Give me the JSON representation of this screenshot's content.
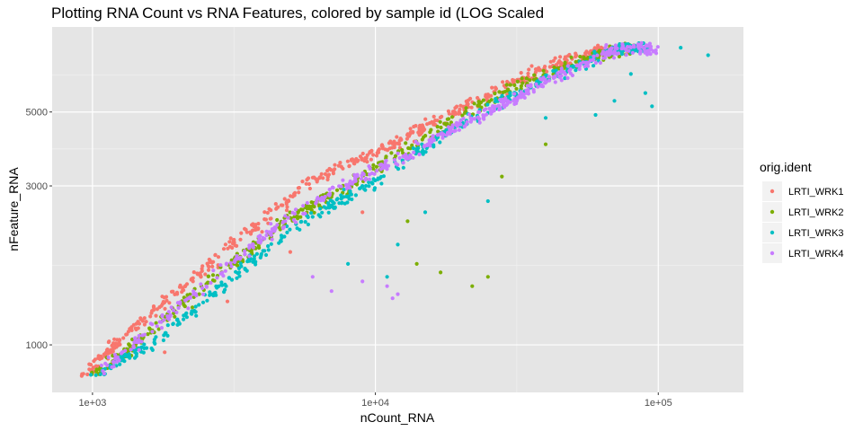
{
  "chart_data": {
    "type": "scatter",
    "title": "Plotting RNA Count vs RNA Features, colored by sample id (LOG Scaled",
    "xlabel": "nCount_RNA",
    "ylabel": "nFeature_RNA",
    "x_scale": "log10",
    "y_scale": "log10",
    "xlim": [
      720,
      200000
    ],
    "ylim": [
      720,
      9000
    ],
    "x_ticks": [
      {
        "value": 1000,
        "label": "1e+03"
      },
      {
        "value": 10000,
        "label": "1e+04"
      },
      {
        "value": 100000,
        "label": "1e+05"
      }
    ],
    "y_ticks": [
      {
        "value": 1000,
        "label": "1000"
      },
      {
        "value": 3000,
        "label": "3000"
      },
      {
        "value": 5000,
        "label": "5000"
      }
    ],
    "grid": true,
    "background": "#e5e5e5",
    "legend": {
      "title": "orig.ident",
      "position": "right"
    },
    "series": [
      {
        "name": "LRTI_WRK1",
        "color": "#f8766d",
        "points": [
          [
            900,
            780
          ],
          [
            1200,
            1000
          ],
          [
            2000,
            1450
          ],
          [
            3500,
            2150
          ],
          [
            6000,
            3100
          ],
          [
            10000,
            3800
          ],
          [
            15000,
            4500
          ],
          [
            25000,
            5600
          ],
          [
            40000,
            6800
          ],
          [
            60000,
            7600
          ],
          [
            80000,
            7800
          ]
        ],
        "outliers": [
          [
            1800,
            950
          ],
          [
            3000,
            1350
          ],
          [
            5000,
            1900
          ],
          [
            9000,
            2500
          ]
        ]
      },
      {
        "name": "LRTI_WRK2",
        "color": "#7cae00",
        "points": [
          [
            1000,
            800
          ],
          [
            1500,
            1050
          ],
          [
            3000,
            1700
          ],
          [
            5000,
            2400
          ],
          [
            8000,
            3000
          ],
          [
            15000,
            4200
          ],
          [
            30000,
            5900
          ],
          [
            60000,
            7400
          ],
          [
            80000,
            7800
          ]
        ],
        "outliers": [
          [
            13000,
            2350
          ],
          [
            14000,
            1750
          ],
          [
            17000,
            1650
          ],
          [
            22000,
            1500
          ],
          [
            25000,
            1600
          ],
          [
            28000,
            3200
          ],
          [
            40000,
            4000
          ]
        ]
      },
      {
        "name": "LRTI_WRK3",
        "color": "#00bfc4",
        "points": [
          [
            1000,
            790
          ],
          [
            1600,
            1000
          ],
          [
            3000,
            1550
          ],
          [
            6000,
            2450
          ],
          [
            10000,
            3100
          ],
          [
            20000,
            4600
          ],
          [
            40000,
            6300
          ],
          [
            70000,
            7700
          ],
          [
            90000,
            7800
          ]
        ],
        "outliers": [
          [
            8000,
            1750
          ],
          [
            11000,
            1600
          ],
          [
            12000,
            2000
          ],
          [
            15000,
            2500
          ],
          [
            25000,
            2700
          ],
          [
            40000,
            4800
          ],
          [
            60000,
            4900
          ],
          [
            70000,
            5400
          ],
          [
            80000,
            6500
          ],
          [
            90000,
            5700
          ],
          [
            95000,
            5200
          ],
          [
            150000,
            7400
          ],
          [
            120000,
            7800
          ]
        ]
      },
      {
        "name": "LRTI_WRK4",
        "color": "#c77cff",
        "points": [
          [
            1100,
            850
          ],
          [
            2000,
            1300
          ],
          [
            4000,
            2100
          ],
          [
            7000,
            2900
          ],
          [
            12000,
            3600
          ],
          [
            20000,
            4600
          ],
          [
            30000,
            5400
          ],
          [
            45000,
            6500
          ],
          [
            70000,
            7700
          ],
          [
            100000,
            7800
          ]
        ],
        "outliers": [
          [
            6000,
            1600
          ],
          [
            7000,
            1450
          ],
          [
            9000,
            1550
          ],
          [
            11000,
            1500
          ],
          [
            11500,
            1380
          ],
          [
            12000,
            1420
          ]
        ]
      }
    ]
  }
}
